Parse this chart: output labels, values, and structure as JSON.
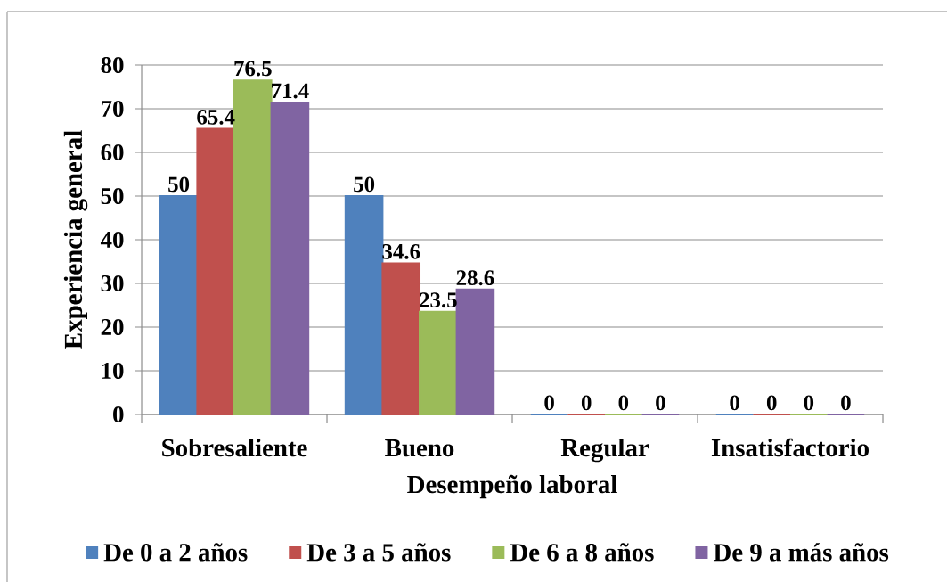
{
  "chart_data": {
    "type": "bar",
    "xlabel": "Desempeño laboral",
    "ylabel": "Experiencia general",
    "categories": [
      "Sobresaliente",
      "Bueno",
      "Regular",
      "Insatisfactorio"
    ],
    "series": [
      {
        "name": "De 0 a 2 años",
        "color": "#4f81bd",
        "values": [
          50,
          50,
          0,
          0
        ]
      },
      {
        "name": "De 3 a 5 años",
        "color": "#c0504d",
        "values": [
          65.4,
          34.6,
          0,
          0
        ]
      },
      {
        "name": "De 6 a 8 años",
        "color": "#9bbb59",
        "values": [
          76.5,
          23.5,
          0,
          0
        ]
      },
      {
        "name": "De 9 a más años",
        "color": "#8064a2",
        "values": [
          71.4,
          28.6,
          0,
          0
        ]
      }
    ],
    "ylim": [
      0,
      80
    ],
    "yticks": [
      0,
      10,
      20,
      30,
      40,
      50,
      60,
      70,
      80
    ],
    "grid": "y",
    "legend": "bottom",
    "data_labels": true
  }
}
